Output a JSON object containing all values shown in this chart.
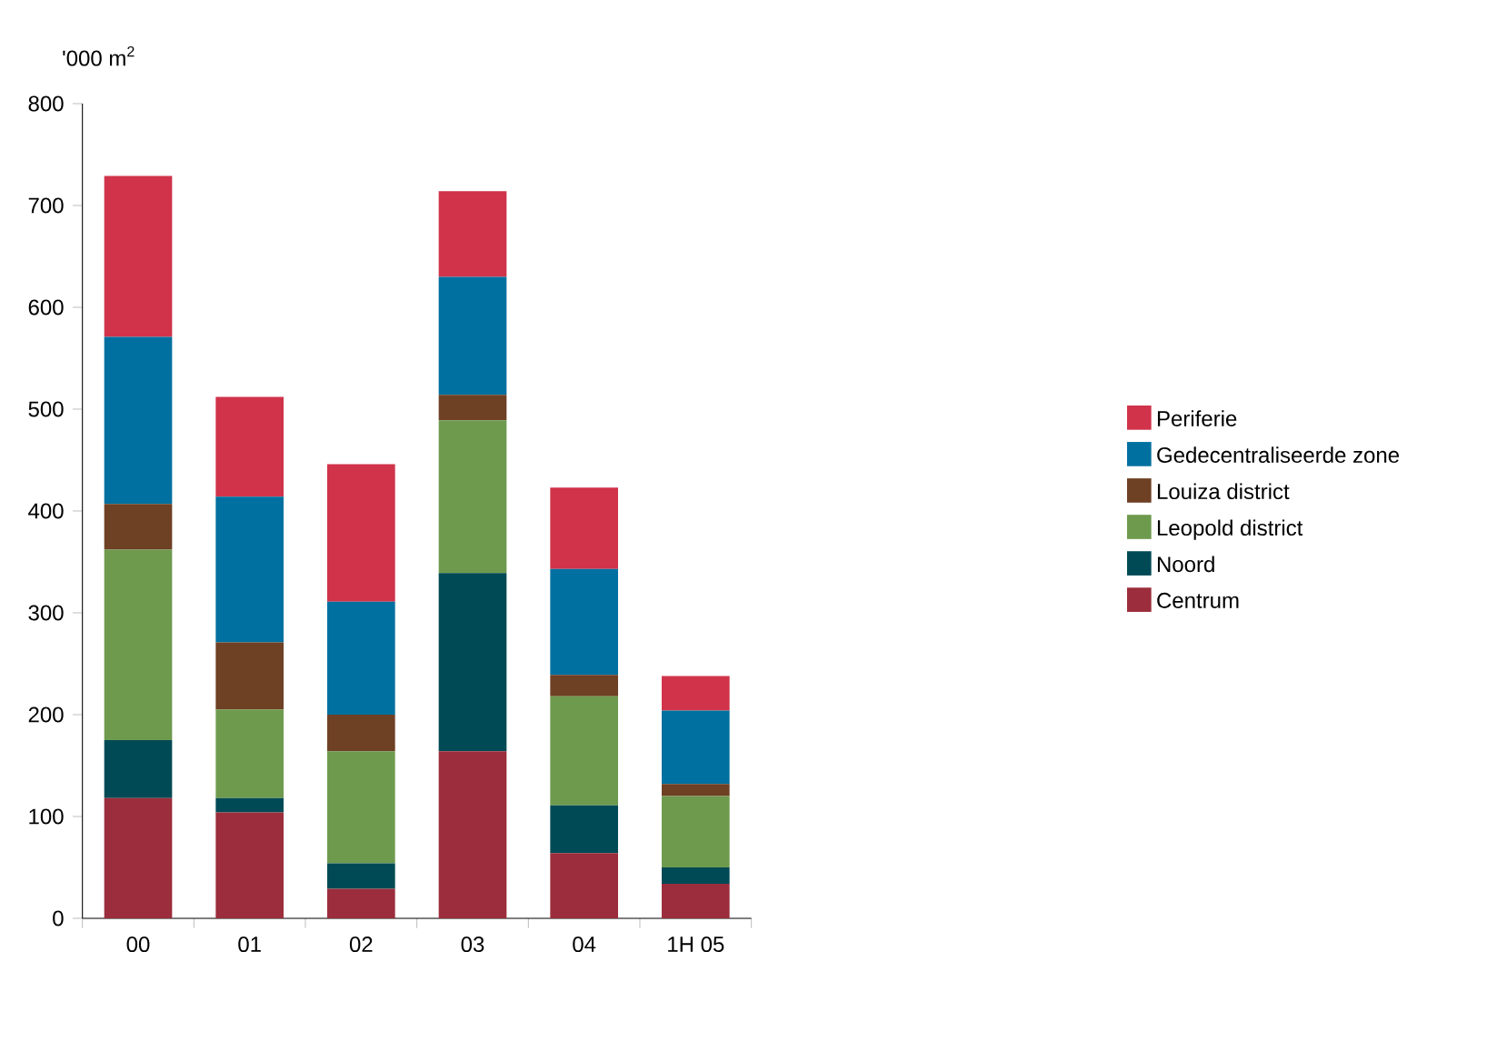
{
  "chart_data": {
    "type": "bar",
    "stacked": true,
    "ylabel": "'000 m$^{2}$",
    "categories": [
      "00",
      "01",
      "02",
      "03",
      "04",
      "1H 05"
    ],
    "series": [
      {
        "name": "Centrum",
        "color": "#9b2d3c",
        "values": [
          118,
          104,
          29,
          164,
          64,
          34
        ]
      },
      {
        "name": "Noord",
        "color": "#004a55",
        "values": [
          57,
          14,
          25,
          175,
          47,
          16
        ]
      },
      {
        "name": "Leopold district",
        "color": "#6e9a4e",
        "values": [
          187,
          87,
          110,
          150,
          107,
          70
        ]
      },
      {
        "name": "Louiza district",
        "color": "#6e4024",
        "values": [
          45,
          66,
          36,
          25,
          21,
          12
        ]
      },
      {
        "name": "Gedecentraliseerde zone",
        "color": "#0070a0",
        "values": [
          164,
          143,
          111,
          116,
          104,
          72
        ]
      },
      {
        "name": "Periferie",
        "color": "#d0334a",
        "values": [
          158,
          98,
          135,
          84,
          80,
          34
        ]
      }
    ],
    "ylim": [
      0,
      800
    ],
    "yticks": [
      0,
      100,
      200,
      300,
      400,
      500,
      600,
      700,
      800
    ],
    "legend": "right",
    "grid": false
  }
}
